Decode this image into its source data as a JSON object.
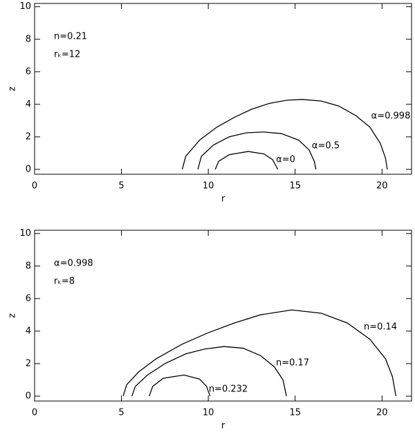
{
  "chart_data": [
    {
      "type": "line",
      "xlabel": "r",
      "ylabel": "z",
      "xlim": [
        0,
        21.7
      ],
      "ylim": [
        -0.3,
        10.2
      ],
      "xticks": [
        0,
        5,
        10,
        15,
        20
      ],
      "yticks": [
        0,
        2,
        4,
        6,
        8,
        10
      ],
      "annotations": [
        "n=0.21",
        "rₖ=12"
      ],
      "series": [
        {
          "name": "α=0.998",
          "color": "#000000",
          "x": [
            8.5,
            8.7,
            9.5,
            10.5,
            11.5,
            12.5,
            13.5,
            14.5,
            15.4,
            16.5,
            17.5,
            18.5,
            19.3,
            19.9,
            20.2,
            20.3
          ],
          "values": [
            0,
            0.8,
            1.8,
            2.6,
            3.2,
            3.7,
            4.05,
            4.25,
            4.3,
            4.2,
            3.9,
            3.3,
            2.6,
            1.6,
            0.7,
            0
          ]
        },
        {
          "name": "α=0.5",
          "color": "#000000",
          "x": [
            9.4,
            9.6,
            10.3,
            11.2,
            12.2,
            13.2,
            14.2,
            15.2,
            15.8,
            16.1,
            16.2
          ],
          "values": [
            0,
            0.8,
            1.5,
            2.0,
            2.25,
            2.3,
            2.2,
            1.8,
            1.2,
            0.5,
            0
          ]
        },
        {
          "name": "α=0",
          "color": "#000000",
          "x": [
            10.4,
            10.6,
            11.2,
            12.3,
            13.2,
            13.7,
            14.0
          ],
          "values": [
            0,
            0.5,
            0.9,
            1.1,
            0.95,
            0.6,
            0
          ]
        }
      ]
    },
    {
      "type": "line",
      "xlabel": "r",
      "ylabel": "z",
      "xlim": [
        0,
        21.7
      ],
      "ylim": [
        -0.3,
        10.2
      ],
      "xticks": [
        0,
        5,
        10,
        15,
        20
      ],
      "yticks": [
        0,
        2,
        4,
        6,
        8,
        10
      ],
      "annotations": [
        "α=0.998",
        "rₖ=8"
      ],
      "series": [
        {
          "name": "n=0.14",
          "color": "#000000",
          "x": [
            5.1,
            5.3,
            6.0,
            7.0,
            8.5,
            10,
            11.5,
            13,
            14.8,
            16.5,
            18,
            19.3,
            20.2,
            20.6,
            20.8
          ],
          "values": [
            0,
            0.7,
            1.5,
            2.3,
            3.2,
            3.9,
            4.5,
            5.0,
            5.3,
            5.1,
            4.5,
            3.5,
            2.3,
            1.2,
            0
          ]
        },
        {
          "name": "n=0.17",
          "color": "#000000",
          "x": [
            5.6,
            5.8,
            6.5,
            7.5,
            8.7,
            9.8,
            10.9,
            12,
            13,
            13.8,
            14.3,
            14.5
          ],
          "values": [
            0,
            0.6,
            1.3,
            2.0,
            2.6,
            2.9,
            3.05,
            2.95,
            2.5,
            1.8,
            1.0,
            0
          ]
        },
        {
          "name": "n=0.232",
          "color": "#000000",
          "x": [
            6.6,
            6.8,
            7.4,
            8.6,
            9.5,
            9.9,
            10.1
          ],
          "values": [
            0,
            0.6,
            1.1,
            1.3,
            1.05,
            0.6,
            0
          ]
        }
      ]
    }
  ]
}
